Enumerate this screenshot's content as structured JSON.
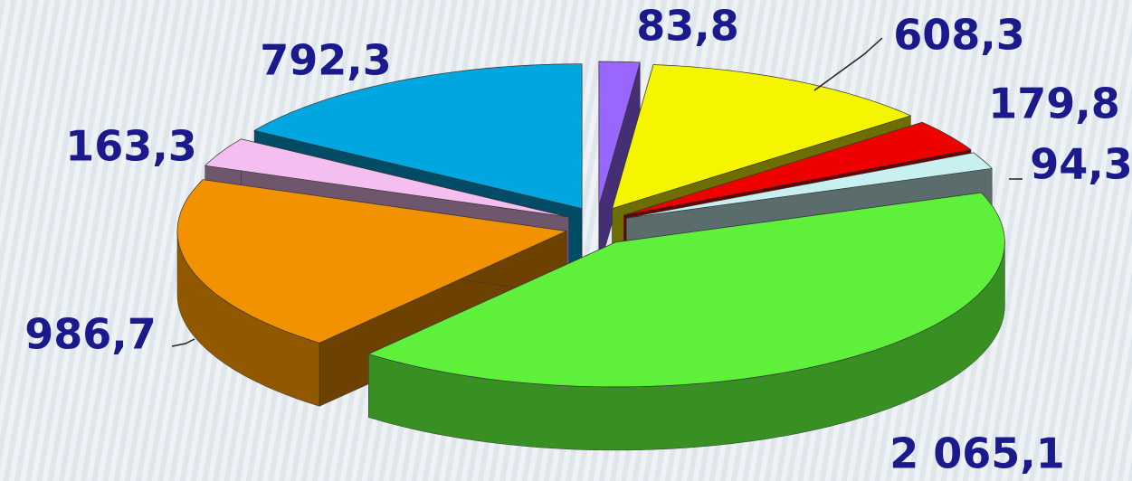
{
  "chart_data": {
    "type": "pie",
    "values": [
      83.8,
      608.3,
      179.8,
      94.3,
      2065.1,
      986.7,
      163.3,
      792.3
    ],
    "value_labels": [
      "83,8",
      "608,3",
      "179,8",
      "94,3",
      "2 065,1",
      "986,7",
      "163,3",
      "792,3"
    ],
    "colors": [
      "#9966ff",
      "#f5f500",
      "#ee0000",
      "#c8f0f0",
      "#5ef03a",
      "#f39200",
      "#f5bef0",
      "#00a6e0"
    ]
  }
}
